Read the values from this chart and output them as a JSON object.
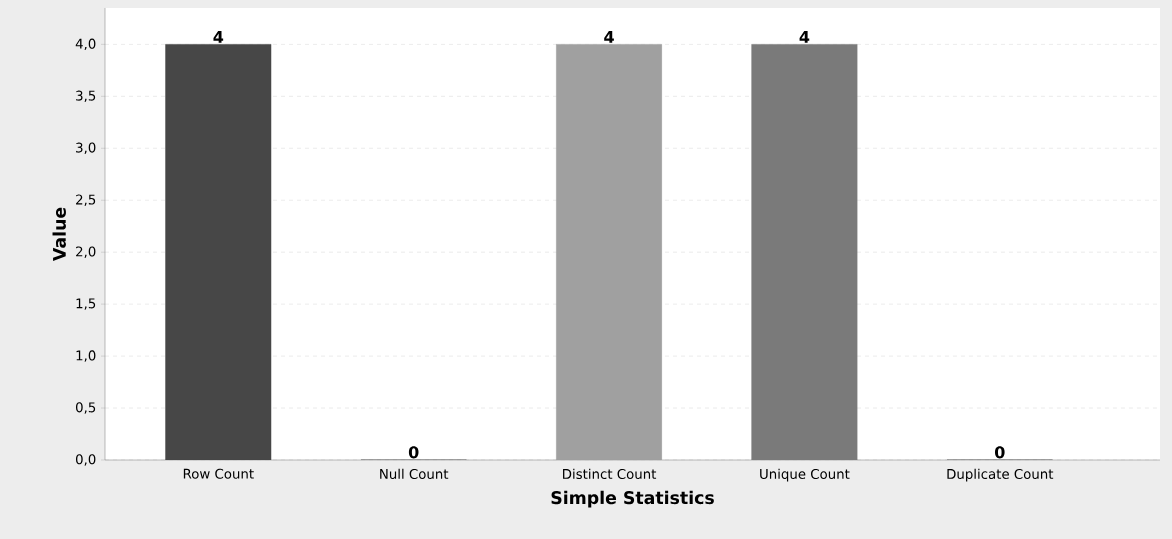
{
  "chart_data": {
    "type": "bar",
    "xlabel": "Simple Statistics",
    "ylabel": "Value",
    "categories": [
      "Row Count",
      "Null Count",
      "Distinct Count",
      "Unique Count",
      "Duplicate Count"
    ],
    "values": [
      4,
      0,
      4,
      4,
      0
    ],
    "value_labels": [
      "4",
      "0",
      "4",
      "4",
      "0"
    ],
    "colors": [
      "#474747",
      "#5a5a5a",
      "#a0a0a0",
      "#7a7a7a",
      "#5a5a5a"
    ],
    "ylim": [
      0,
      4.35
    ],
    "yticks": [
      {
        "value": 0,
        "label": "0,0"
      },
      {
        "value": 0.5,
        "label": "0,5"
      },
      {
        "value": 1,
        "label": "1,0"
      },
      {
        "value": 1.5,
        "label": "1,5"
      },
      {
        "value": 2,
        "label": "2,0"
      },
      {
        "value": 2.5,
        "label": "2,5"
      },
      {
        "value": 3,
        "label": "3,0"
      },
      {
        "value": 3.5,
        "label": "3,5"
      },
      {
        "value": 4,
        "label": "4,0"
      }
    ],
    "grid": "y"
  }
}
